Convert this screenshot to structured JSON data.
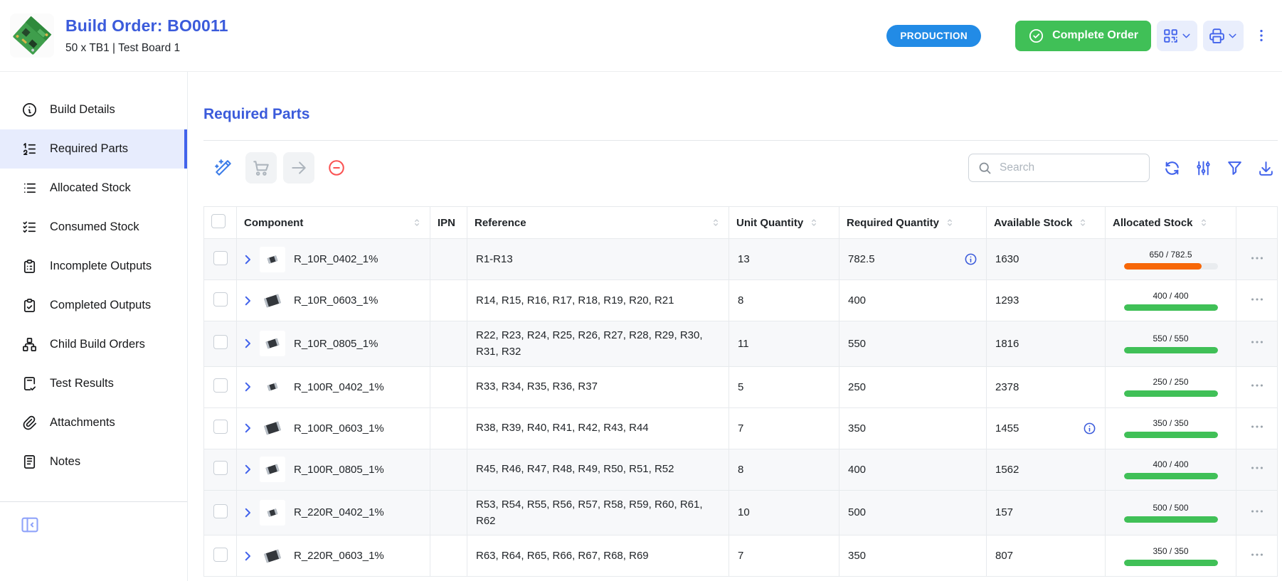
{
  "header": {
    "title": "Build Order: BO0011",
    "subtitle": "50 x TB1 | Test Board 1",
    "status_badge": "PRODUCTION",
    "complete_button_label": "Complete Order",
    "complete_button_icon": "circle-check-icon",
    "barcode_button_icon": "qrcode-icon",
    "print_button_icon": "printer-icon",
    "menu_icon": "dots-vertical-icon",
    "thumbnail": "pcb-image"
  },
  "sidebar": {
    "items": [
      {
        "label": "Build Details",
        "icon": "info-circle-icon",
        "active": false
      },
      {
        "label": "Required Parts",
        "icon": "list-numbers-icon",
        "active": true
      },
      {
        "label": "Allocated Stock",
        "icon": "list-icon",
        "active": false
      },
      {
        "label": "Consumed Stock",
        "icon": "list-check-icon",
        "active": false
      },
      {
        "label": "Incomplete Outputs",
        "icon": "clipboard-list-icon",
        "active": false
      },
      {
        "label": "Completed Outputs",
        "icon": "clipboard-check-icon",
        "active": false
      },
      {
        "label": "Child Build Orders",
        "icon": "sitemap-icon",
        "active": false
      },
      {
        "label": "Test Results",
        "icon": "file-check-icon",
        "active": false
      },
      {
        "label": "Attachments",
        "icon": "paperclip-icon",
        "active": false
      },
      {
        "label": "Notes",
        "icon": "notes-icon",
        "active": false
      }
    ],
    "collapse_icon": "panel-collapse-icon"
  },
  "main": {
    "heading": "Required Parts",
    "search_placeholder": "Search",
    "toolbar_left": [
      {
        "icon": "wand-icon",
        "style": "plain",
        "color": "#3b7ce8",
        "disabled": false
      },
      {
        "icon": "cart-icon",
        "style": "boxed",
        "color": "#adb5bd",
        "disabled": true
      },
      {
        "icon": "arrow-right-icon",
        "style": "boxed",
        "color": "#adb5bd",
        "disabled": true
      },
      {
        "icon": "minus-circle-icon",
        "style": "plain",
        "color": "#fa5252",
        "disabled": false
      }
    ],
    "toolbar_right": [
      "refresh-icon",
      "adjustments-icon",
      "filter-icon",
      "download-icon"
    ]
  },
  "table": {
    "columns": [
      "Component",
      "IPN",
      "Reference",
      "Unit Quantity",
      "Required Quantity",
      "Available Stock",
      "Allocated Stock"
    ],
    "sort_icon": "selector-icon",
    "row_expand_icon": "chevron-right-icon",
    "row_info_icon": "info-circle-small-icon",
    "row_actions_icon": "dots-horizontal-icon",
    "rows": [
      {
        "component": "R_10R_0402_1%",
        "thumb": "resistor-0402-thumbnail",
        "ipn": "",
        "reference": "R1-R13",
        "unit_quantity": "13",
        "required_quantity": "782.5",
        "required_info": true,
        "available_stock": "1630",
        "available_info": false,
        "allocated_label": "650 / 782.5",
        "progress_percent": 83,
        "progress_color": "orange",
        "striped": true
      },
      {
        "component": "R_10R_0603_1%",
        "thumb": "resistor-0603-thumbnail",
        "ipn": "",
        "reference": "R14, R15, R16, R17, R18, R19, R20, R21",
        "unit_quantity": "8",
        "required_quantity": "400",
        "required_info": false,
        "available_stock": "1293",
        "available_info": false,
        "allocated_label": "400 / 400",
        "progress_percent": 100,
        "progress_color": "green",
        "striped": false
      },
      {
        "component": "R_10R_0805_1%",
        "thumb": "resistor-0805-thumbnail",
        "ipn": "",
        "reference": "R22, R23, R24, R25, R26, R27, R28, R29, R30, R31, R32",
        "unit_quantity": "11",
        "required_quantity": "550",
        "required_info": false,
        "available_stock": "1816",
        "available_info": false,
        "allocated_label": "550 / 550",
        "progress_percent": 100,
        "progress_color": "green",
        "striped": true
      },
      {
        "component": "R_100R_0402_1%",
        "thumb": "resistor-0402-thumbnail",
        "ipn": "",
        "reference": "R33, R34, R35, R36, R37",
        "unit_quantity": "5",
        "required_quantity": "250",
        "required_info": false,
        "available_stock": "2378",
        "available_info": false,
        "allocated_label": "250 / 250",
        "progress_percent": 100,
        "progress_color": "green",
        "striped": false
      },
      {
        "component": "R_100R_0603_1%",
        "thumb": "resistor-0603-thumbnail",
        "ipn": "",
        "reference": "R38, R39, R40, R41, R42, R43, R44",
        "unit_quantity": "7",
        "required_quantity": "350",
        "required_info": false,
        "available_stock": "1455",
        "available_info": true,
        "allocated_label": "350 / 350",
        "progress_percent": 100,
        "progress_color": "green",
        "striped": false
      },
      {
        "component": "R_100R_0805_1%",
        "thumb": "resistor-0805-thumbnail",
        "ipn": "",
        "reference": "R45, R46, R47, R48, R49, R50, R51, R52",
        "unit_quantity": "8",
        "required_quantity": "400",
        "required_info": false,
        "available_stock": "1562",
        "available_info": false,
        "allocated_label": "400 / 400",
        "progress_percent": 100,
        "progress_color": "green",
        "striped": true
      },
      {
        "component": "R_220R_0402_1%",
        "thumb": "resistor-0402-thumbnail",
        "ipn": "",
        "reference": "R53, R54, R55, R56, R57, R58, R59, R60, R61, R62",
        "unit_quantity": "10",
        "required_quantity": "500",
        "required_info": false,
        "available_stock": "157",
        "available_info": false,
        "allocated_label": "500 / 500",
        "progress_percent": 100,
        "progress_color": "green",
        "striped": true
      },
      {
        "component": "R_220R_0603_1%",
        "thumb": "resistor-0603-thumbnail",
        "ipn": "",
        "reference": "R63, R64, R65, R66, R67, R68, R69",
        "unit_quantity": "7",
        "required_quantity": "350",
        "required_info": false,
        "available_stock": "807",
        "available_info": false,
        "allocated_label": "350 / 350",
        "progress_percent": 100,
        "progress_color": "green",
        "striped": false
      }
    ]
  },
  "colors": {
    "heading_blue": "#3b5bdb",
    "accent_blue": "#4263eb",
    "badge_blue": "#228be6",
    "green": "#40c057",
    "orange": "#f76707",
    "red": "#fa5252"
  }
}
